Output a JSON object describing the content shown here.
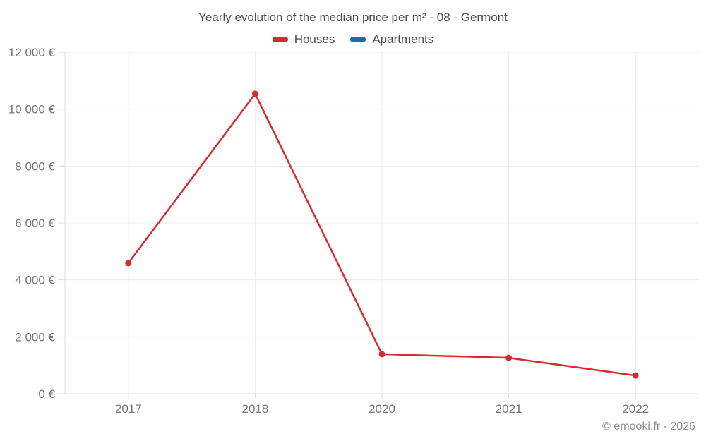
{
  "header": {
    "title": "Yearly evolution of the median price per m² - 08 - Germont"
  },
  "legend": {
    "items": [
      {
        "label": "Houses",
        "color": "#d62b2e"
      },
      {
        "label": "Apartments",
        "color": "#17709e"
      }
    ]
  },
  "footer": {
    "credit": "© emooki.fr - 2026"
  },
  "chart_data": {
    "type": "line",
    "title": "Yearly evolution of the median price per m² - 08 - Germont",
    "xlabel": "",
    "ylabel": "",
    "categories": [
      "2017",
      "2018",
      "2020",
      "2021",
      "2022"
    ],
    "series": [
      {
        "name": "Houses",
        "color": "#d62b2e",
        "values": [
          4590,
          10540,
          1390,
          1260,
          640
        ]
      },
      {
        "name": "Apartments",
        "color": "#17709e",
        "values": []
      }
    ],
    "ylim": [
      0,
      12000
    ],
    "y_ticks": [
      {
        "value": 0,
        "label": "0 €"
      },
      {
        "value": 2000,
        "label": "2 000 €"
      },
      {
        "value": 4000,
        "label": "4 000 €"
      },
      {
        "value": 6000,
        "label": "6 000 €"
      },
      {
        "value": 8000,
        "label": "8 000 €"
      },
      {
        "value": 10000,
        "label": "10 000 €"
      },
      {
        "value": 12000,
        "label": "12 000 €"
      }
    ],
    "grid": true,
    "legend_position": "top",
    "marker": "circle"
  }
}
